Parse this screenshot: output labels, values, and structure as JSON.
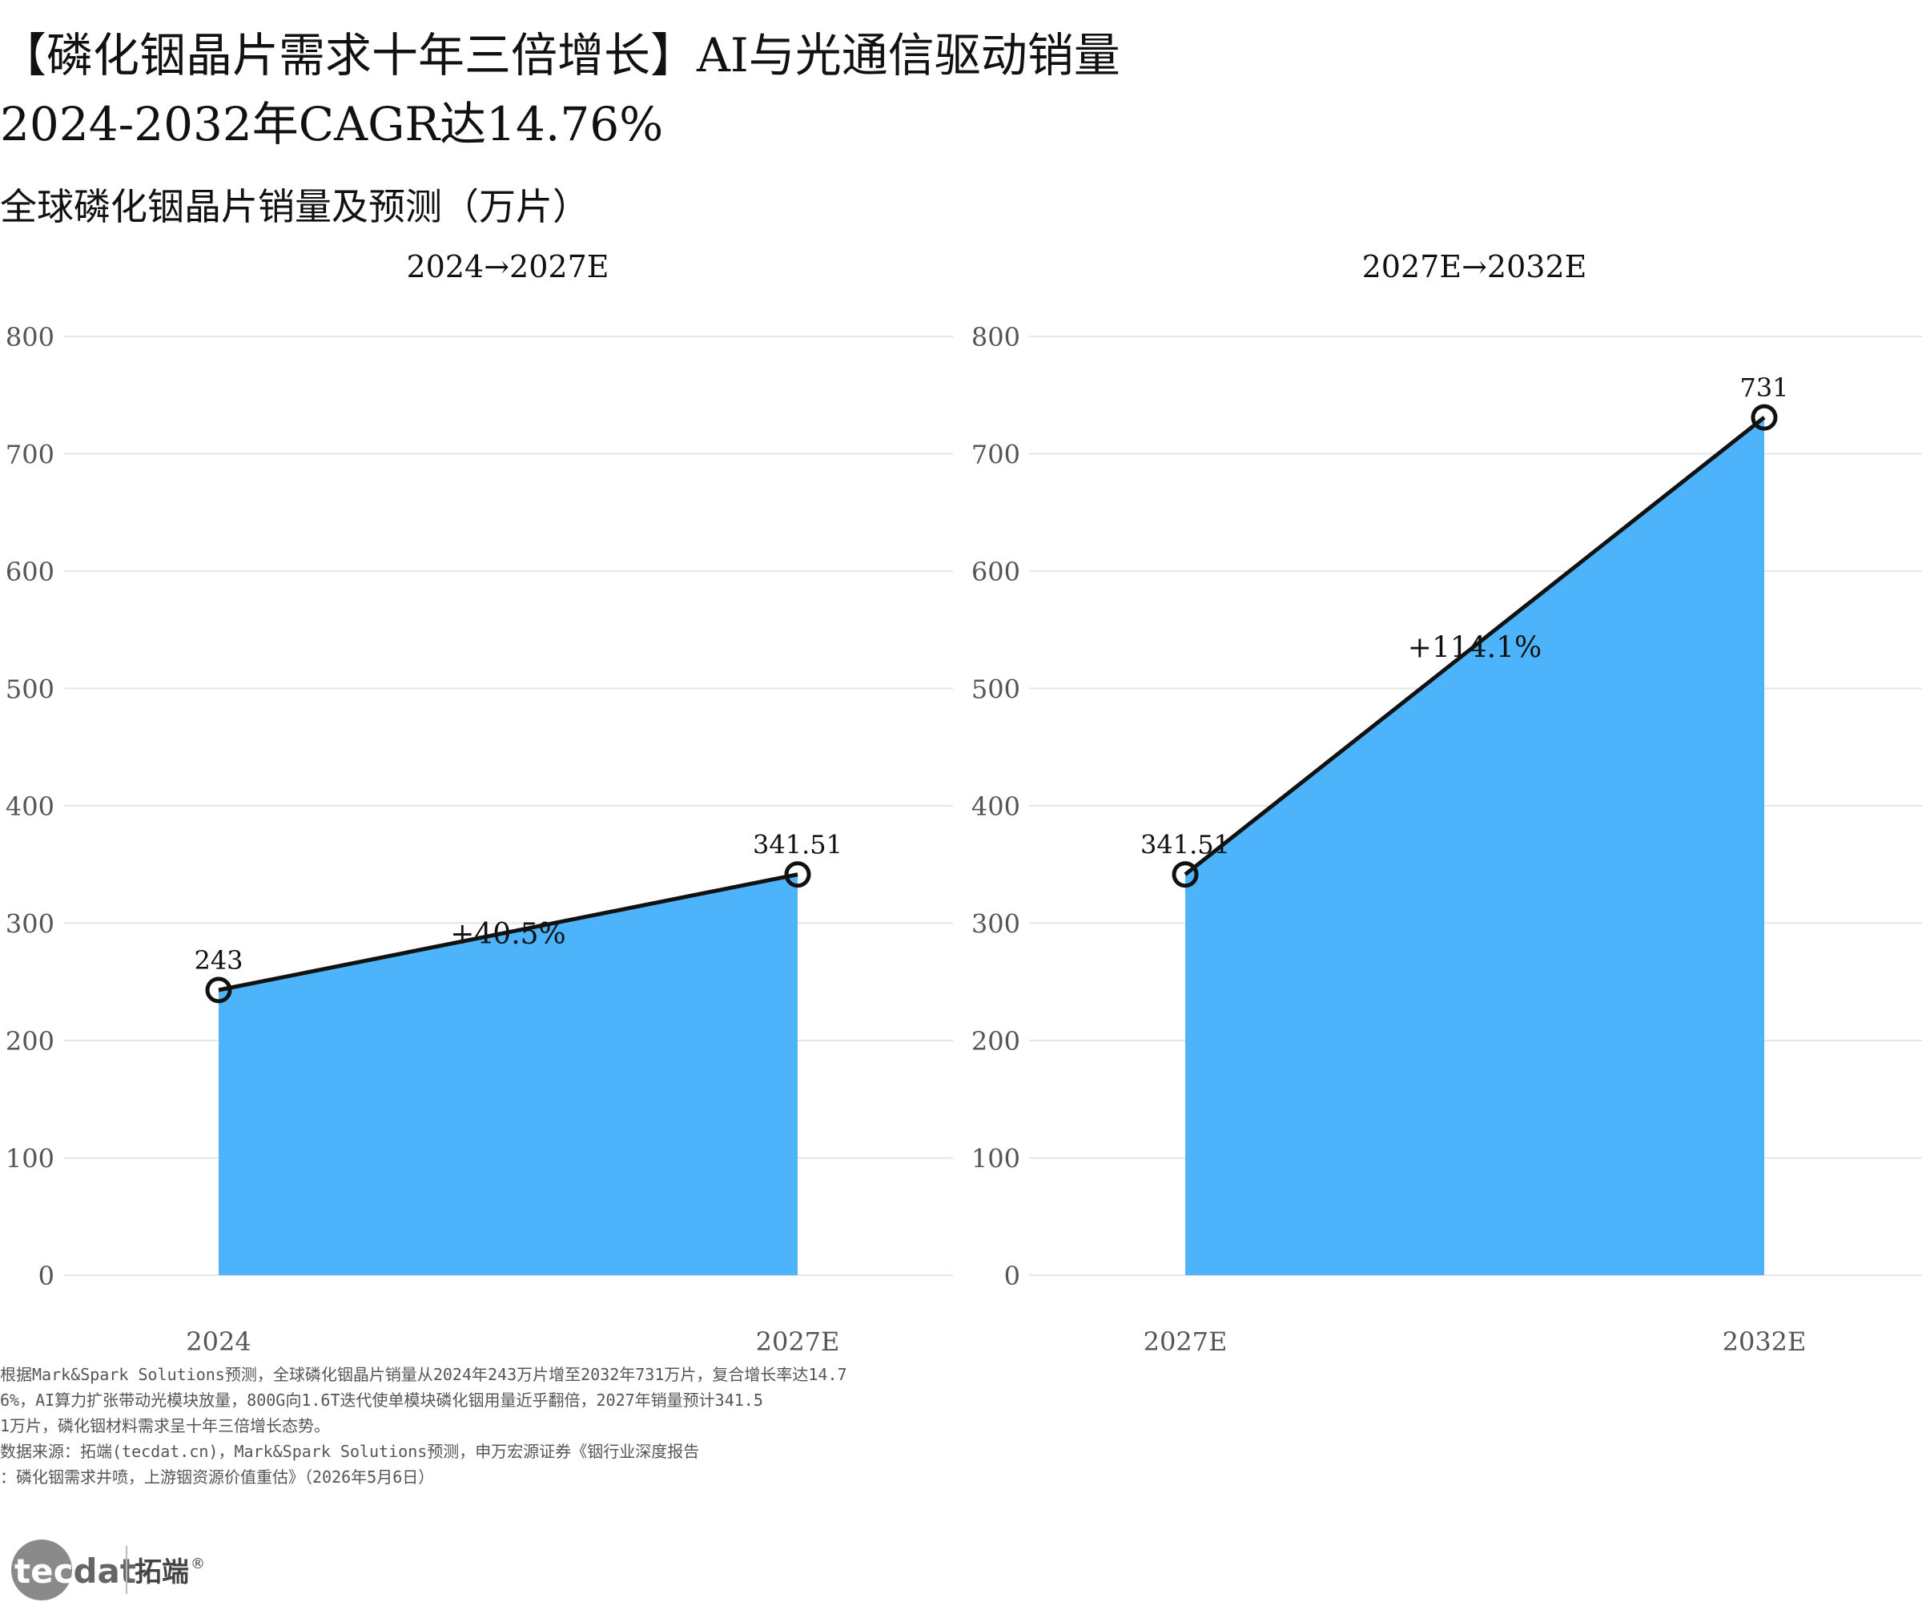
{
  "title_line1": "【磷化铟晶片需求十年三倍增长】AI与光通信驱动销量",
  "title_line2": "2024-2032年CAGR达14.76%",
  "subtitle": "全球磷化铟晶片销量及预测（万片）",
  "colors": {
    "fill": "#4db4fb",
    "line": "#111111",
    "grid": "#e6e6e6",
    "axis_text": "#555555"
  },
  "chart_data": [
    {
      "type": "area",
      "title": "2024→2027E",
      "categories": [
        "2024",
        "2027E"
      ],
      "values": [
        243,
        341.51
      ],
      "value_labels": [
        "243",
        "341.51"
      ],
      "growth_label": "+40.5%",
      "ylim": [
        0,
        800
      ],
      "yticks": [
        0,
        100,
        200,
        300,
        400,
        500,
        600,
        700,
        800
      ],
      "grid": true,
      "legend": "none"
    },
    {
      "type": "area",
      "title": "2027E→2032E",
      "categories": [
        "2027E",
        "2032E"
      ],
      "values": [
        341.51,
        731
      ],
      "value_labels": [
        "341.51",
        "731"
      ],
      "growth_label": "+114.1%",
      "ylim": [
        0,
        800
      ],
      "yticks": [
        0,
        100,
        200,
        300,
        400,
        500,
        600,
        700,
        800
      ],
      "grid": true,
      "legend": "none"
    }
  ],
  "notes": [
    "根据Mark&Spark Solutions预测，全球磷化铟晶片销量从2024年243万片增至2032年731万片，复合增长率达14.7",
    "6%，AI算力扩张带动光模块放量，800G向1.6T迭代使单模块磷化铟用量近乎翻倍，2027年销量预计341.5",
    "1万片，磷化铟材料需求呈十年三倍增长态势。",
    "数据来源：拓端(tecdat.cn)，Mark&Spark Solutions预测，申万宏源证券《铟行业深度报告",
    "：磷化铟需求井喷，上游铟资源价值重估》（2026年5月6日）"
  ],
  "logo": {
    "brand_en": "tecdat",
    "brand_cn": "拓端",
    "mark": "®"
  }
}
